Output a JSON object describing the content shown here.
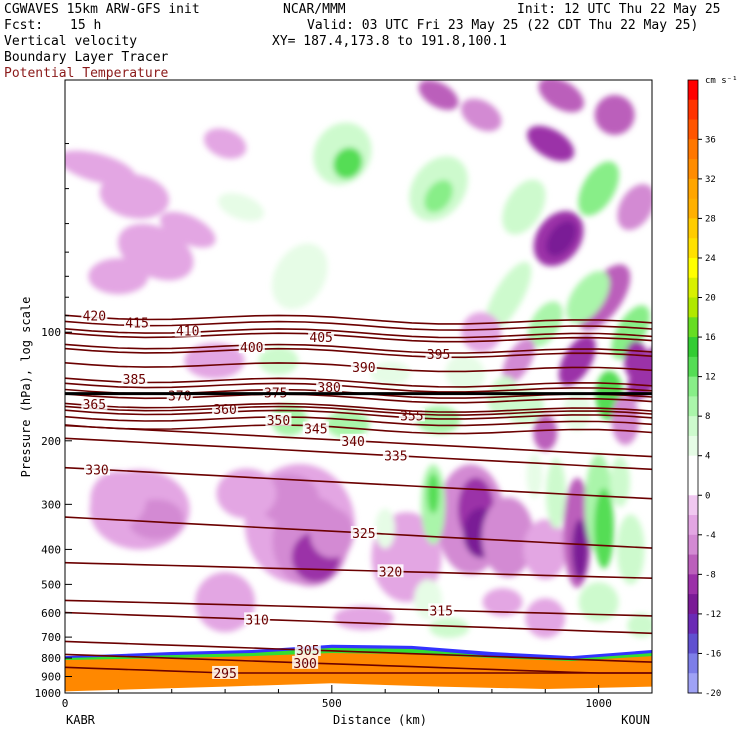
{
  "header": {
    "model": "CGWAVES 15km ARW-GFS init",
    "center": "NCAR/MMM",
    "init": "Init: 12 UTC Thu 22 May 25",
    "fcst_label": "Fcst:",
    "fcst_value": "15 h",
    "valid": "Valid: 03 UTC Fri 23 May 25 (22 CDT Thu 22 May 25)",
    "xy": "XY= 187.4,173.8 to 191.8,100.1",
    "field1": "Vertical velocity",
    "field2": "Boundary Layer Tracer",
    "field3": "Potential Temperature",
    "field3_color": "#8b1a1a"
  },
  "chart_data": {
    "type": "heatmap",
    "title": "Vertical velocity",
    "xlabel": "Distance (km)",
    "ylabel": "Pressure (hPa), log scale",
    "x_range": [
      0,
      1100
    ],
    "x_ticks": [
      0,
      500,
      1000
    ],
    "y_scale": "log",
    "y_range": [
      1000,
      20
    ],
    "y_ticks": [
      100,
      200,
      300,
      400,
      500,
      600,
      700,
      800,
      900,
      1000
    ],
    "endpoints": {
      "left": "KABR",
      "right": "KOUN"
    },
    "colorbar": {
      "units": "cm s⁻¹",
      "levels": [
        40,
        38,
        36,
        34,
        32,
        30,
        28,
        26,
        24,
        22,
        20,
        18,
        16,
        14,
        12,
        10,
        8,
        6,
        4,
        2,
        0,
        -2,
        -4,
        -6,
        -8,
        -10,
        -12,
        -14,
        -16,
        -18,
        -20
      ],
      "labels": [
        36,
        32,
        28,
        24,
        20,
        16,
        12,
        8,
        4,
        0,
        -4,
        -8,
        -12,
        -16,
        -20
      ],
      "colors": [
        "#ff0000",
        "#ff3300",
        "#ff5500",
        "#ff7700",
        "#ff8c00",
        "#ffa500",
        "#ffb000",
        "#ffcc00",
        "#ffe100",
        "#ffff00",
        "#d8f000",
        "#b0e800",
        "#66dd22",
        "#33cc33",
        "#55dd55",
        "#88ee88",
        "#aaf5aa",
        "#cdfacd",
        "#e6fce6",
        "#ffffff",
        "#ffffff",
        "#f0c8f0",
        "#e3a6e3",
        "#d38ad3",
        "#bb5fbb",
        "#9b30a8",
        "#7a1a96",
        "#6a2ab5",
        "#6050d0",
        "#7d7ee8",
        "#9fa2f5"
      ]
    },
    "theta_contours": [
      {
        "value": 295,
        "label_x": 300,
        "p": 880
      },
      {
        "value": 300,
        "label_x": 450,
        "p": 825
      },
      {
        "value": 305,
        "label_x": 455,
        "p": 760
      },
      {
        "value": 310,
        "label_x": 360,
        "p": 625
      },
      {
        "value": 315,
        "label_x": 705,
        "p": 590
      },
      {
        "value": 320,
        "label_x": 610,
        "p": 460
      },
      {
        "value": 325,
        "label_x": 560,
        "p": 360
      },
      {
        "value": 330,
        "label_x": 60,
        "p": 240
      },
      {
        "value": 335,
        "label_x": 620,
        "p": 220
      },
      {
        "value": 340,
        "label_x": 540,
        "p": 200
      },
      {
        "value": 345,
        "label_x": 470,
        "p": 185
      },
      {
        "value": 350,
        "label_x": 400,
        "p": 175
      },
      {
        "value": 355,
        "label_x": 650,
        "p": 170
      },
      {
        "value": 360,
        "label_x": 300,
        "p": 163
      },
      {
        "value": 365,
        "label_x": 55,
        "p": 158
      },
      {
        "value": 370,
        "label_x": 215,
        "p": 150
      },
      {
        "value": 375,
        "label_x": 395,
        "p": 147
      },
      {
        "value": 380,
        "label_x": 495,
        "p": 142
      },
      {
        "value": 385,
        "label_x": 130,
        "p": 135
      },
      {
        "value": 390,
        "label_x": 560,
        "p": 125
      },
      {
        "value": 395,
        "label_x": 700,
        "p": 115
      },
      {
        "value": 400,
        "label_x": 350,
        "p": 110
      },
      {
        "value": 405,
        "label_x": 480,
        "p": 103
      },
      {
        "value": 410,
        "label_x": 230,
        "p": 99
      },
      {
        "value": 415,
        "label_x": 135,
        "p": 94
      },
      {
        "value": 420,
        "label_x": 55,
        "p": 90
      }
    ]
  }
}
